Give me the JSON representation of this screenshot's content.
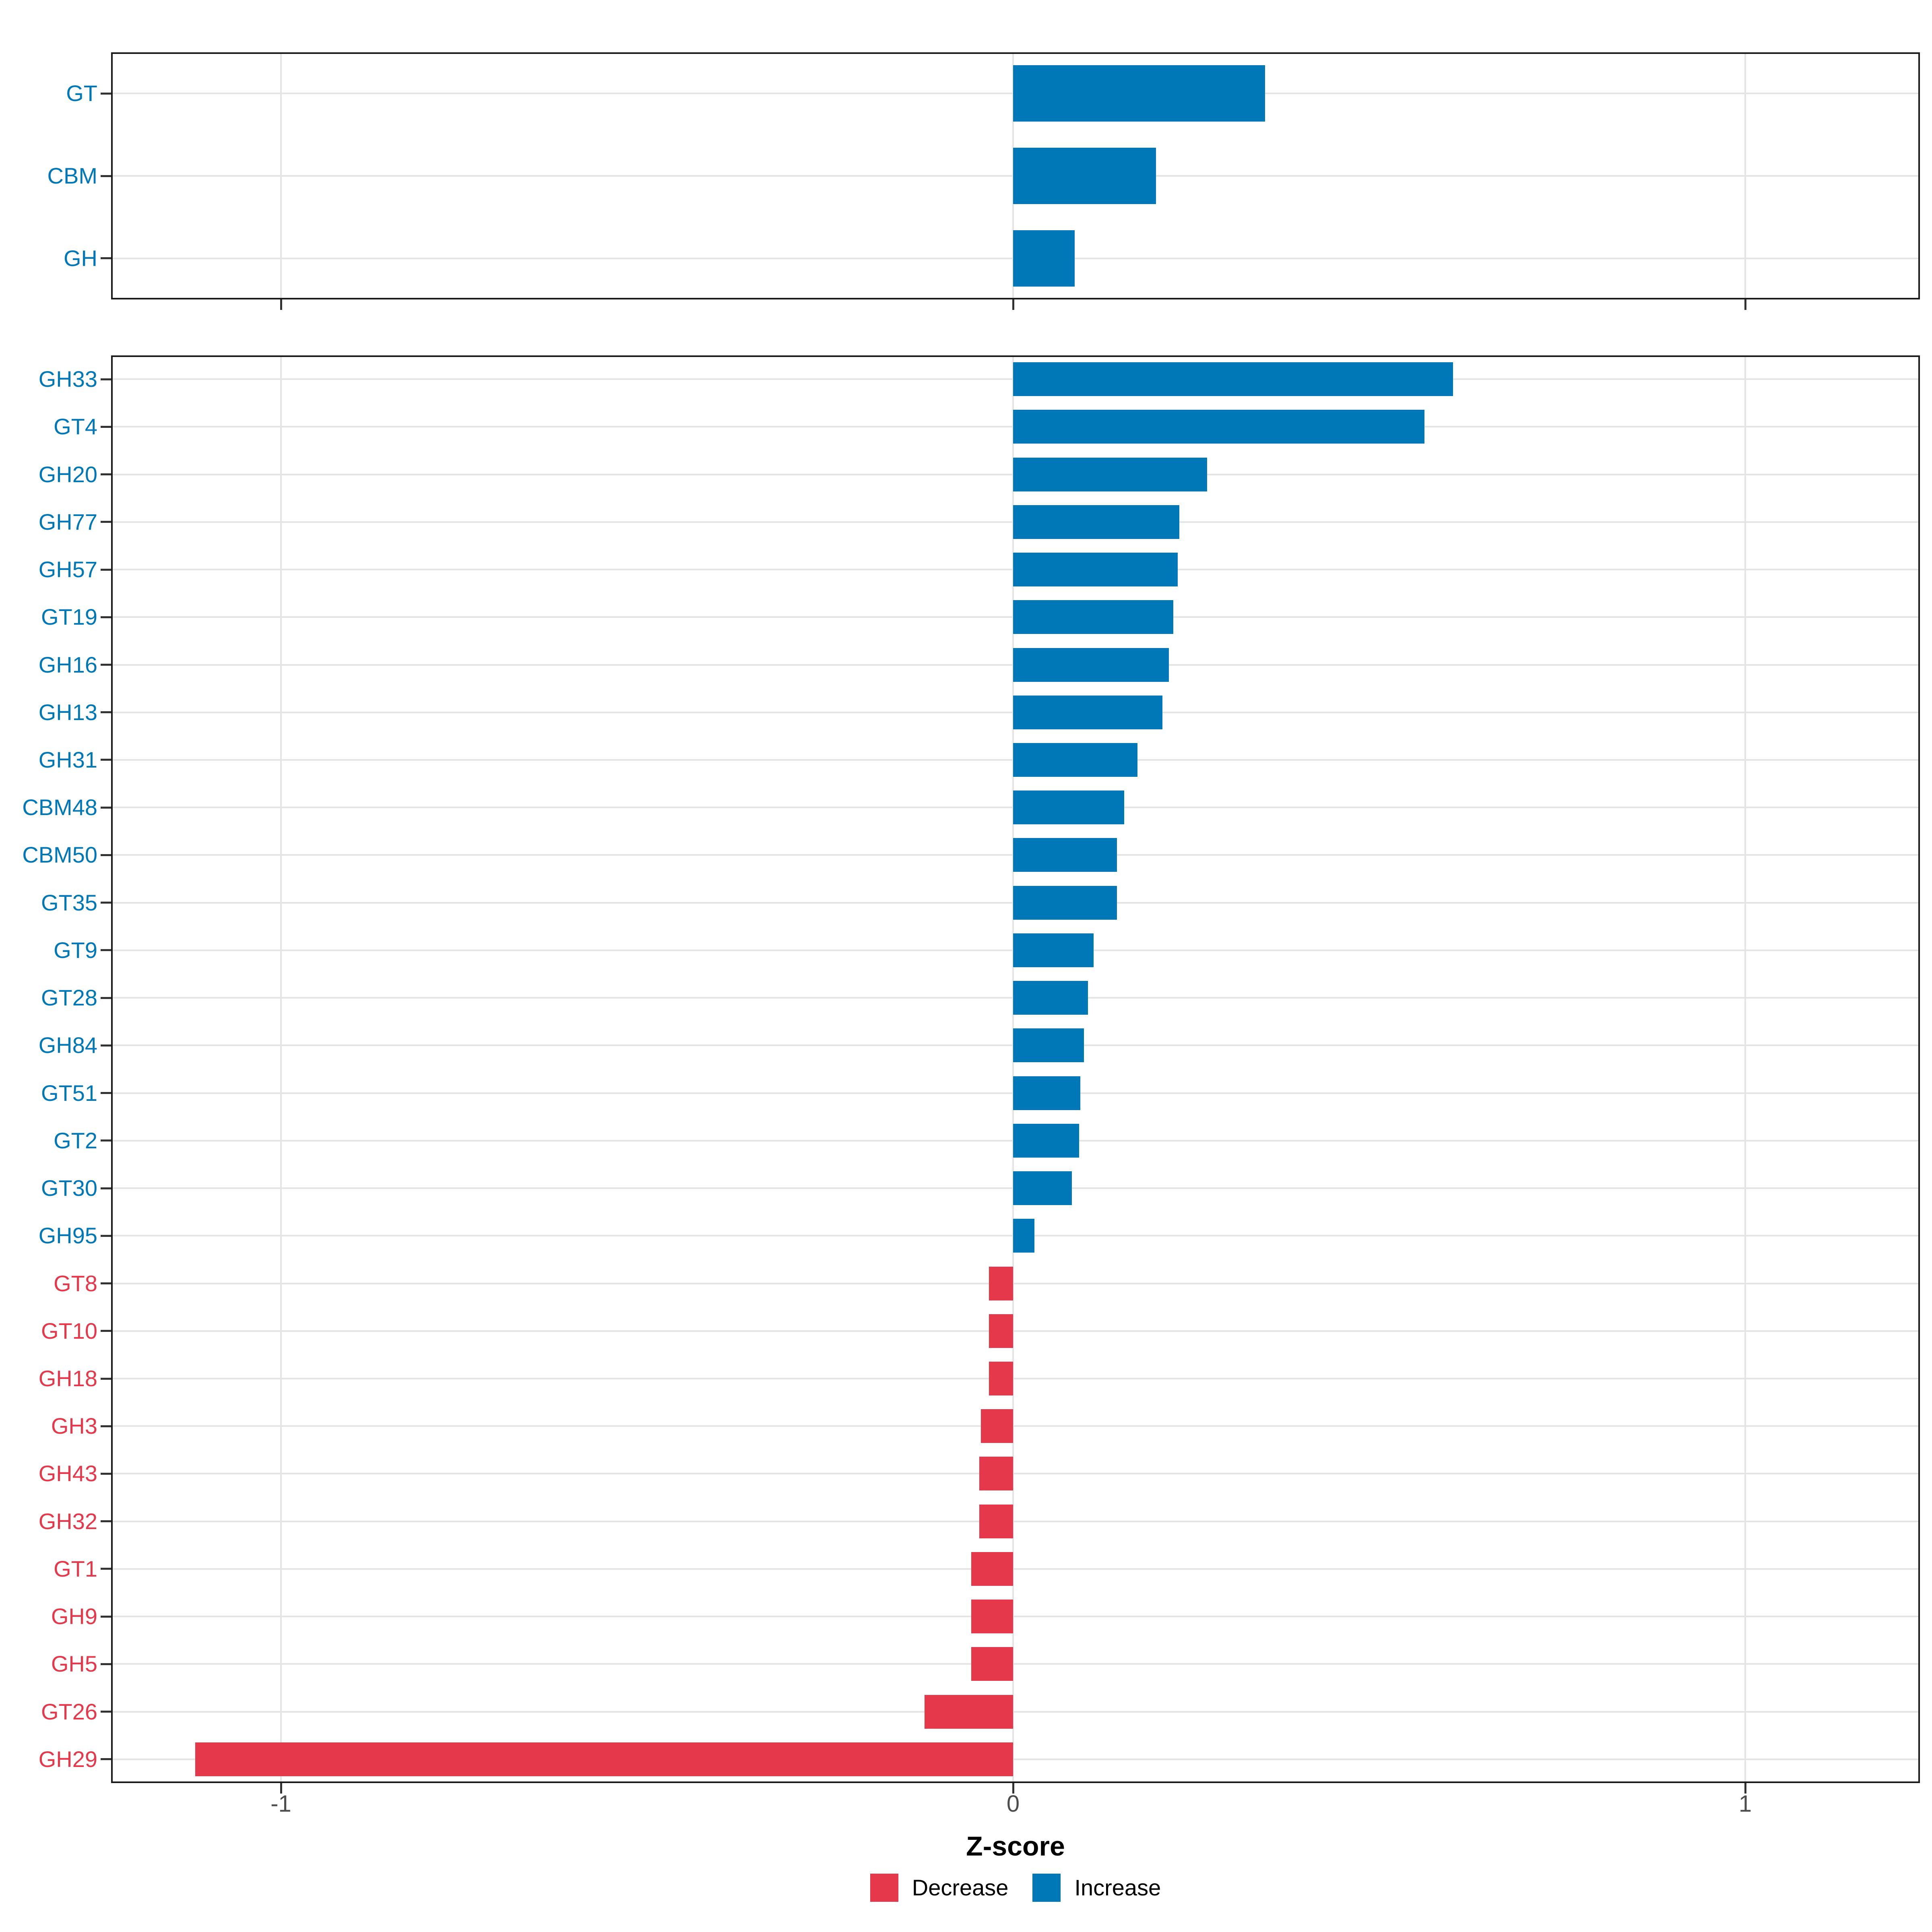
{
  "axis": {
    "title": "Z-score",
    "tick_labels": [
      "-1",
      "0",
      "1"
    ]
  },
  "legend": {
    "items": [
      {
        "label": "Decrease",
        "color": "#e5384a"
      },
      {
        "label": "Increase",
        "color": "#0077b6"
      }
    ]
  },
  "chart_data": {
    "type": "bar",
    "orientation": "horizontal",
    "title": "",
    "xlabel": "Z-score",
    "ylabel": "",
    "x_ticks": [
      -1,
      0,
      1
    ],
    "x_range": [
      -1.232,
      1.239
    ],
    "grid": true,
    "legend_position": "bottom",
    "colors": {
      "Increase": "#0077b6",
      "Decrease": "#e5384a"
    },
    "facets": [
      {
        "name": "summary",
        "categories": [
          "GT",
          "CBM",
          "GH"
        ],
        "values": [
          0.344,
          0.195,
          0.084
        ],
        "series": [
          {
            "label": "GT",
            "value": 0.344,
            "direction": "Increase"
          },
          {
            "label": "CBM",
            "value": 0.195,
            "direction": "Increase"
          },
          {
            "label": "GH",
            "value": 0.084,
            "direction": "Increase"
          }
        ]
      },
      {
        "name": "families",
        "categories": [
          "GH33",
          "GT4",
          "GH20",
          "GH77",
          "GH57",
          "GT19",
          "GH16",
          "GH13",
          "GH31",
          "CBM48",
          "CBM50",
          "GT35",
          "GT9",
          "GT28",
          "GH84",
          "GT51",
          "GT2",
          "GT30",
          "GH95",
          "GT8",
          "GT10",
          "GH18",
          "GH3",
          "GH43",
          "GH32",
          "GT1",
          "GH9",
          "GH5",
          "GT26",
          "GH29"
        ],
        "values": [
          0.601,
          0.562,
          0.265,
          0.227,
          0.225,
          0.219,
          0.213,
          0.204,
          0.17,
          0.152,
          0.142,
          0.142,
          0.11,
          0.102,
          0.097,
          0.092,
          0.09,
          0.08,
          0.029,
          -0.033,
          -0.033,
          -0.033,
          -0.044,
          -0.046,
          -0.046,
          -0.057,
          -0.057,
          -0.057,
          -0.121,
          -1.117
        ],
        "series": [
          {
            "label": "GH33",
            "value": 0.601,
            "direction": "Increase"
          },
          {
            "label": "GT4",
            "value": 0.562,
            "direction": "Increase"
          },
          {
            "label": "GH20",
            "value": 0.265,
            "direction": "Increase"
          },
          {
            "label": "GH77",
            "value": 0.227,
            "direction": "Increase"
          },
          {
            "label": "GH57",
            "value": 0.225,
            "direction": "Increase"
          },
          {
            "label": "GT19",
            "value": 0.219,
            "direction": "Increase"
          },
          {
            "label": "GH16",
            "value": 0.213,
            "direction": "Increase"
          },
          {
            "label": "GH13",
            "value": 0.204,
            "direction": "Increase"
          },
          {
            "label": "GH31",
            "value": 0.17,
            "direction": "Increase"
          },
          {
            "label": "CBM48",
            "value": 0.152,
            "direction": "Increase"
          },
          {
            "label": "CBM50",
            "value": 0.142,
            "direction": "Increase"
          },
          {
            "label": "GT35",
            "value": 0.142,
            "direction": "Increase"
          },
          {
            "label": "GT9",
            "value": 0.11,
            "direction": "Increase"
          },
          {
            "label": "GT28",
            "value": 0.102,
            "direction": "Increase"
          },
          {
            "label": "GH84",
            "value": 0.097,
            "direction": "Increase"
          },
          {
            "label": "GT51",
            "value": 0.092,
            "direction": "Increase"
          },
          {
            "label": "GT2",
            "value": 0.09,
            "direction": "Increase"
          },
          {
            "label": "GT30",
            "value": 0.08,
            "direction": "Increase"
          },
          {
            "label": "GH95",
            "value": 0.029,
            "direction": "Increase"
          },
          {
            "label": "GT8",
            "value": -0.033,
            "direction": "Decrease"
          },
          {
            "label": "GT10",
            "value": -0.033,
            "direction": "Decrease"
          },
          {
            "label": "GH18",
            "value": -0.033,
            "direction": "Decrease"
          },
          {
            "label": "GH3",
            "value": -0.044,
            "direction": "Decrease"
          },
          {
            "label": "GH43",
            "value": -0.046,
            "direction": "Decrease"
          },
          {
            "label": "GH32",
            "value": -0.046,
            "direction": "Decrease"
          },
          {
            "label": "GT1",
            "value": -0.057,
            "direction": "Decrease"
          },
          {
            "label": "GH9",
            "value": -0.057,
            "direction": "Decrease"
          },
          {
            "label": "GH5",
            "value": -0.057,
            "direction": "Decrease"
          },
          {
            "label": "GT26",
            "value": -0.121,
            "direction": "Decrease"
          },
          {
            "label": "GH29",
            "value": -1.117,
            "direction": "Decrease"
          }
        ]
      }
    ]
  }
}
